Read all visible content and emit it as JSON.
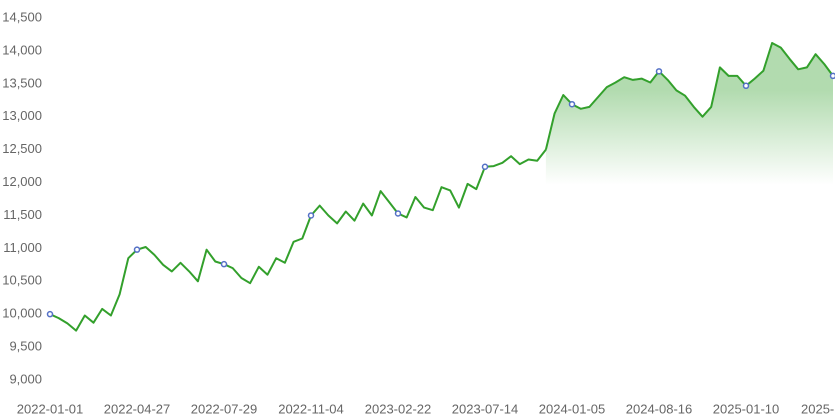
{
  "chart_data": {
    "type": "line",
    "categories": [
      "2022-01-01",
      null,
      null,
      null,
      null,
      null,
      null,
      null,
      null,
      null,
      "2022-04-27",
      null,
      null,
      null,
      null,
      null,
      null,
      null,
      null,
      null,
      "2022-07-29",
      null,
      null,
      null,
      null,
      null,
      null,
      null,
      null,
      null,
      "2022-11-04",
      null,
      null,
      null,
      null,
      null,
      null,
      null,
      null,
      null,
      "2023-02-22",
      null,
      null,
      null,
      null,
      null,
      null,
      null,
      null,
      null,
      "2023-07-14",
      null,
      null,
      null,
      null,
      null,
      null,
      null,
      null,
      null,
      "2024-01-05",
      null,
      null,
      null,
      null,
      null,
      null,
      null,
      null,
      null,
      "2024-08-16",
      null,
      null,
      null,
      null,
      null,
      null,
      null,
      null,
      null,
      "2025-01-10",
      null,
      null,
      null,
      null,
      null,
      null,
      null,
      null,
      null,
      "2025-"
    ],
    "series": [
      {
        "color": "#33a02c",
        "area": false,
        "values": [
          10000,
          9940,
          9860,
          9750,
          9980,
          9870,
          10080,
          9980,
          10300,
          10850,
          10980,
          11020,
          10900,
          10750,
          10650,
          10780,
          10650,
          10500,
          10980,
          10800,
          10760,
          10700,
          10550,
          10470,
          10720,
          10600,
          10850,
          10780,
          11100,
          11150,
          11500,
          11650,
          11500,
          11380,
          11560,
          11420,
          11680,
          11500,
          11870,
          11700,
          11530,
          11470,
          11780,
          11620,
          11580,
          11930,
          11880,
          11620,
          11980,
          11900,
          12240,
          12250,
          12300,
          12400,
          12280,
          12350,
          12330,
          12500,
          null,
          null,
          null,
          null,
          null,
          null,
          null,
          null,
          null,
          null,
          null,
          null,
          null,
          null,
          null,
          null,
          null,
          null,
          null,
          null,
          null,
          null,
          null,
          null,
          null,
          null,
          null,
          null,
          null,
          null,
          null,
          null,
          null
        ]
      },
      {
        "color": "#33a02c",
        "area": true,
        "values": [
          null,
          null,
          null,
          null,
          null,
          null,
          null,
          null,
          null,
          null,
          null,
          null,
          null,
          null,
          null,
          null,
          null,
          null,
          null,
          null,
          null,
          null,
          null,
          null,
          null,
          null,
          null,
          null,
          null,
          null,
          null,
          null,
          null,
          null,
          null,
          null,
          null,
          null,
          null,
          null,
          null,
          null,
          null,
          null,
          null,
          null,
          null,
          null,
          null,
          null,
          null,
          null,
          null,
          null,
          null,
          null,
          null,
          12500,
          13050,
          13330,
          13190,
          13120,
          13150,
          13300,
          13450,
          13520,
          13600,
          13560,
          13580,
          13520,
          13690,
          13560,
          13400,
          13320,
          13150,
          13000,
          13150,
          13750,
          13620,
          13620,
          13470,
          13580,
          13700,
          14120,
          14050,
          13880,
          13720,
          13750,
          13950,
          13800,
          13620
        ]
      }
    ],
    "marker_color": "#5470c6",
    "ylim": [
      9000,
      14500
    ],
    "yticks": [
      {
        "value": 9000,
        "label": "9,000"
      },
      {
        "value": 9500,
        "label": "9,500"
      },
      {
        "value": 10000,
        "label": "10,000"
      },
      {
        "value": 10500,
        "label": "10,500"
      },
      {
        "value": 11000,
        "label": "11,000"
      },
      {
        "value": 11500,
        "label": "11,500"
      },
      {
        "value": 12000,
        "label": "12,000"
      },
      {
        "value": 12500,
        "label": "12,500"
      },
      {
        "value": 13000,
        "label": "13,000"
      },
      {
        "value": 13500,
        "label": "13,500"
      },
      {
        "value": 14000,
        "label": "14,000"
      },
      {
        "value": 14500,
        "label": "14,500"
      }
    ],
    "grid": false
  }
}
